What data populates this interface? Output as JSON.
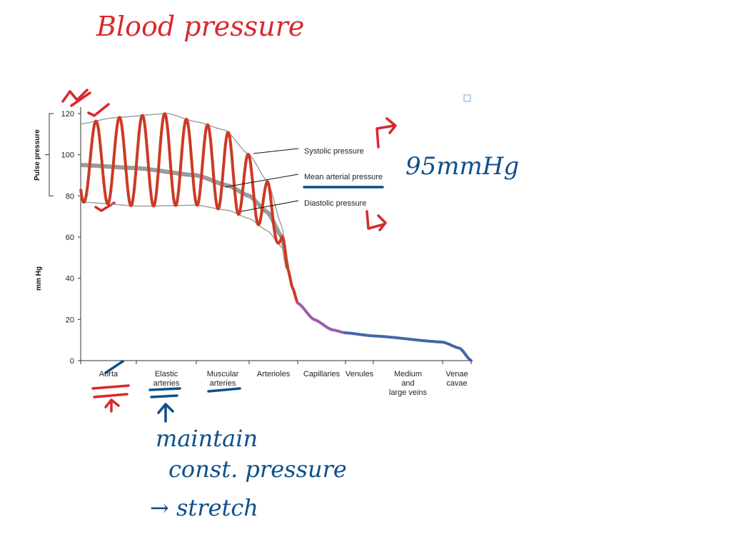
{
  "annotations": {
    "title": "Blood pressure",
    "mean_value": "95mmHg",
    "note_line1": "maintain",
    "note_line2": "const. pressure",
    "note_line3": "→ stretch",
    "red": "#d8282e",
    "blue": "#0d4f8b"
  },
  "chart_data": {
    "type": "line",
    "title": "",
    "ylabel": "mm Hg",
    "bracket_label": "Pulse pressure",
    "ylim": [
      0,
      120
    ],
    "yticks": [
      0,
      20,
      40,
      60,
      80,
      100,
      120
    ],
    "categories": [
      [
        "Aorta"
      ],
      [
        "Elastic",
        "arteries"
      ],
      [
        "Muscular",
        "arteries"
      ],
      [
        "Arterioles"
      ],
      [
        "Capillaries"
      ],
      [
        "Venules"
      ],
      [
        "Medium",
        "and",
        "large veins"
      ],
      [
        "Venae",
        "cavae"
      ]
    ],
    "x_units": "position along vessel categories (0 = start of Aorta, 8 = end of Venae cavae)",
    "series": [
      {
        "name": "Systolic pressure",
        "color": "#9a9a9a",
        "points": [
          [
            0,
            115
          ],
          [
            0.6,
            118
          ],
          [
            1.52,
            120
          ],
          [
            2,
            116
          ],
          [
            2.54,
            112
          ],
          [
            3,
            100
          ],
          [
            3.38,
            87
          ],
          [
            3.68,
            65
          ],
          [
            3.79,
            45
          ]
        ]
      },
      {
        "name": "Mean arterial pressure",
        "color": "#8a8a8a",
        "points": [
          [
            0,
            95
          ],
          [
            1,
            93.5
          ],
          [
            2,
            90
          ],
          [
            2.6,
            85
          ],
          [
            3,
            80
          ],
          [
            3.38,
            72
          ],
          [
            3.68,
            60
          ],
          [
            3.79,
            45
          ]
        ]
      },
      {
        "name": "Diastolic pressure",
        "color": "#9a9a9a",
        "points": [
          [
            0,
            77
          ],
          [
            1.1,
            75
          ],
          [
            2,
            75.5
          ],
          [
            2.6,
            73
          ],
          [
            3,
            69
          ],
          [
            3.38,
            63
          ],
          [
            3.68,
            55
          ],
          [
            3.79,
            45
          ]
        ]
      }
    ],
    "downstream_pressure": {
      "points": [
        [
          3.79,
          45
        ],
        [
          3.9,
          35
        ],
        [
          4,
          28
        ],
        [
          4.34,
          20
        ],
        [
          4.72,
          15
        ],
        [
          5,
          13.5
        ],
        [
          6,
          12
        ],
        [
          7,
          9
        ],
        [
          7.6,
          6
        ],
        [
          8,
          0
        ]
      ],
      "segment_colors": [
        {
          "to": 4,
          "color": "#cc3a25"
        },
        {
          "to": 5,
          "color": "#9b5bb0"
        },
        {
          "to": 8,
          "color": "#4466a8"
        }
      ]
    },
    "pulse_color": "#cc3a25",
    "grid": false
  }
}
